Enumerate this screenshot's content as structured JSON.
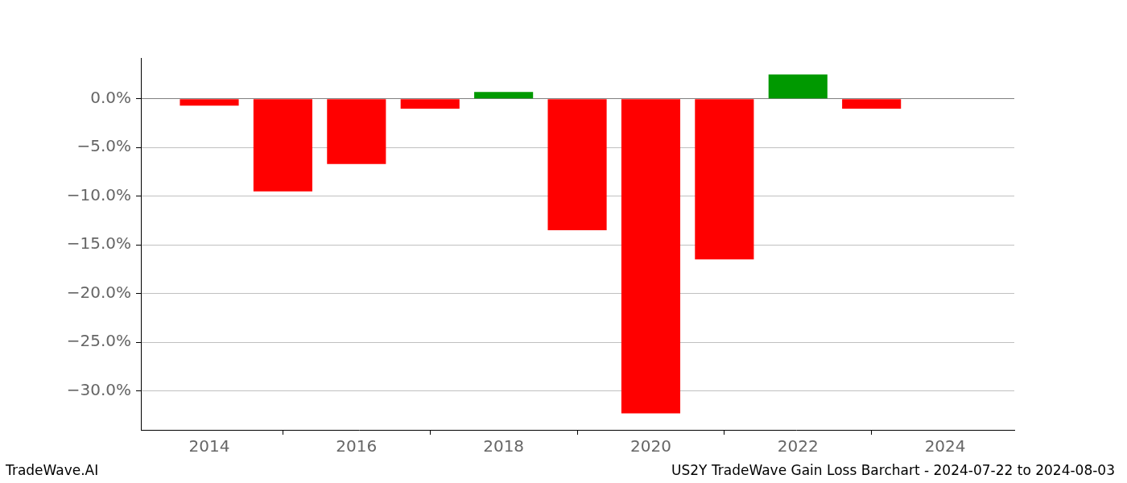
{
  "chart_data": {
    "type": "bar",
    "title": "US2Y TradeWave Gain Loss Barchart - 2024-07-22 to 2024-08-03",
    "annotations": [
      "TradeWave.AI"
    ],
    "x": [
      2014,
      2015,
      2016,
      2017,
      2018,
      2019,
      2020,
      2021,
      2022,
      2023
    ],
    "values": [
      -0.7,
      -9.5,
      -6.7,
      -1.0,
      0.7,
      -13.5,
      -32.3,
      -16.5,
      2.5,
      -1.0
    ],
    "colors": [
      "#ff0000",
      "#ff0000",
      "#ff0000",
      "#ff0000",
      "#009900",
      "#ff0000",
      "#ff0000",
      "#ff0000",
      "#009900",
      "#ff0000"
    ],
    "xlim": [
      2013.07,
      2024.94
    ],
    "xticks": [
      2014,
      2016,
      2018,
      2020,
      2022,
      2024
    ],
    "ylim": [
      -34.0,
      4.2
    ],
    "yticks": [
      {
        "value": 0,
        "label": "0.0%"
      },
      {
        "value": -5,
        "label": "−5.0%"
      },
      {
        "value": -10,
        "label": "−10.0%"
      },
      {
        "value": -15,
        "label": "−15.0%"
      },
      {
        "value": -20,
        "label": "−20.0%"
      },
      {
        "value": -25,
        "label": "−25.0%"
      },
      {
        "value": -30,
        "label": "−30.0%"
      }
    ],
    "grid": true
  }
}
